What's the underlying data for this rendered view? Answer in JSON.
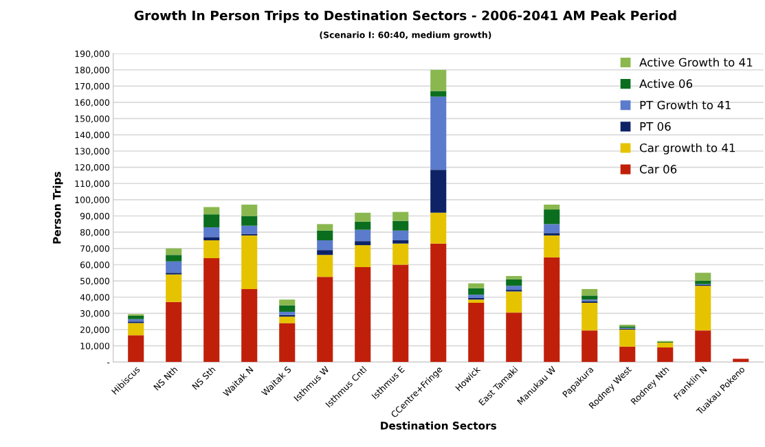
{
  "chart_data": {
    "type": "bar",
    "stacked": true,
    "title": "Growth In Person Trips to Destination Sectors - 2006-2041 AM Peak Period",
    "subtitle": "(Scenario I: 60:40, medium growth)",
    "xlabel": "Destination Sectors",
    "ylabel": "Person Trips",
    "categories": [
      "Hibiscus",
      "NS Nth",
      "NS Sth",
      "Waitak N",
      "Waitak S",
      "Isthmus W",
      "Isthmus Cntl",
      "Isthmus E",
      "CCentre+Fringe",
      "Howick",
      "East Tamaki",
      "Manukau W",
      "Papakura",
      "Rodney West",
      "Rodney Nth",
      "Franklin N",
      "Tuakau Pokeno"
    ],
    "series": [
      {
        "name": "Car 06",
        "color": "#c0200a",
        "values": [
          16500,
          37000,
          64000,
          45000,
          24000,
          52500,
          58500,
          60000,
          73000,
          36500,
          30500,
          64500,
          19500,
          9500,
          9000,
          19500,
          2000
        ]
      },
      {
        "name": "Car growth to 41",
        "color": "#e6c300",
        "values": [
          7500,
          17000,
          11000,
          33000,
          4000,
          13500,
          13500,
          13000,
          19000,
          2000,
          13000,
          13500,
          17000,
          10500,
          3000,
          27500,
          0
        ]
      },
      {
        "name": "PT 06",
        "color": "#0d2366",
        "values": [
          1000,
          1000,
          2000,
          1000,
          1000,
          3000,
          2500,
          2000,
          26500,
          1000,
          1000,
          1500,
          1000,
          500,
          0,
          500,
          0
        ]
      },
      {
        "name": "PT Growth to 41",
        "color": "#5b7ccc",
        "values": [
          1500,
          7000,
          6000,
          5000,
          2000,
          6000,
          7000,
          6000,
          45000,
          2000,
          2500,
          5500,
          1000,
          500,
          0,
          500,
          0
        ]
      },
      {
        "name": "Active 06",
        "color": "#0b6e1f",
        "values": [
          2000,
          4000,
          8000,
          6000,
          4000,
          6000,
          5000,
          6000,
          3500,
          4000,
          4000,
          9000,
          2500,
          1000,
          500,
          2000,
          0
        ]
      },
      {
        "name": "Active Growth to 41",
        "color": "#8ab84f",
        "values": [
          1000,
          4000,
          4500,
          7000,
          3500,
          4000,
          5500,
          5500,
          13000,
          3000,
          2000,
          3000,
          4000,
          1000,
          500,
          5000,
          0
        ]
      }
    ],
    "ylim": [
      0,
      190000
    ],
    "yticks": [
      {
        "value": 0,
        "label": "-"
      },
      {
        "value": 10000,
        "label": "10,000"
      },
      {
        "value": 20000,
        "label": "20,000"
      },
      {
        "value": 30000,
        "label": "30,000"
      },
      {
        "value": 40000,
        "label": "40,000"
      },
      {
        "value": 50000,
        "label": "50,000"
      },
      {
        "value": 60000,
        "label": "60,000"
      },
      {
        "value": 70000,
        "label": "70,000"
      },
      {
        "value": 80000,
        "label": "80,000"
      },
      {
        "value": 90000,
        "label": "90,000"
      },
      {
        "value": 100000,
        "label": "100,000"
      },
      {
        "value": 110000,
        "label": "110,000"
      },
      {
        "value": 120000,
        "label": "120,000"
      },
      {
        "value": 130000,
        "label": "130,000"
      },
      {
        "value": 140000,
        "label": "140,000"
      },
      {
        "value": 150000,
        "label": "150,000"
      },
      {
        "value": 160000,
        "label": "160,000"
      },
      {
        "value": 170000,
        "label": "170,000"
      },
      {
        "value": 180000,
        "label": "180,000"
      },
      {
        "value": 190000,
        "label": "190,000"
      }
    ],
    "grid": "y",
    "legend": "top right"
  }
}
